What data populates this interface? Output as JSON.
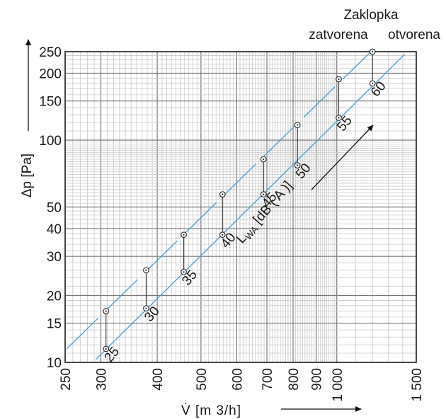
{
  "chart_data": {
    "type": "scatter",
    "title": "",
    "xlabel": "V̇ [m 3/h]",
    "ylabel": "Δp [Pa]",
    "x_scale": "log",
    "y_scale": "log",
    "xlim": [
      250,
      1500
    ],
    "ylim": [
      10,
      250
    ],
    "grid": true,
    "x_ticks": [
      250,
      300,
      400,
      500,
      600,
      700,
      800,
      900,
      1000,
      1500
    ],
    "x_tick_labels": [
      "250",
      "300",
      "400",
      "500",
      "600",
      "700",
      "800",
      "900",
      "1 000",
      "1 500"
    ],
    "y_ticks": [
      10,
      15,
      20,
      30,
      40,
      50,
      100,
      150,
      200,
      250
    ],
    "y_tick_labels": [
      "10",
      "15",
      "20",
      "30",
      "40",
      "50",
      "100",
      "150",
      "200",
      "250"
    ],
    "legend": {
      "header": "Zaklopka",
      "closed": "zatvorena",
      "open": "otvorena"
    },
    "level_axis_label": "LWA [dB ( A )]",
    "level_axis_label_main": "L",
    "level_axis_label_sub": "WA",
    "level_axis_label_rest": "[dB ( A )]",
    "series": [
      {
        "name": "otvorena",
        "x": [
          308,
          378,
          458,
          558,
          688,
          818,
          1010,
          1200
        ],
        "y": [
          11.5,
          17.5,
          25.5,
          37.5,
          57,
          77,
          126,
          180
        ]
      },
      {
        "name": "zatvorena",
        "x": [
          308,
          378,
          458,
          558,
          688,
          818,
          1010,
          1200
        ],
        "y": [
          17,
          26,
          37.5,
          57,
          82,
          117,
          188,
          250
        ]
      }
    ],
    "sound_levels": [
      "25",
      "30",
      "35",
      "40",
      "45",
      "50",
      "55",
      "60"
    ]
  }
}
